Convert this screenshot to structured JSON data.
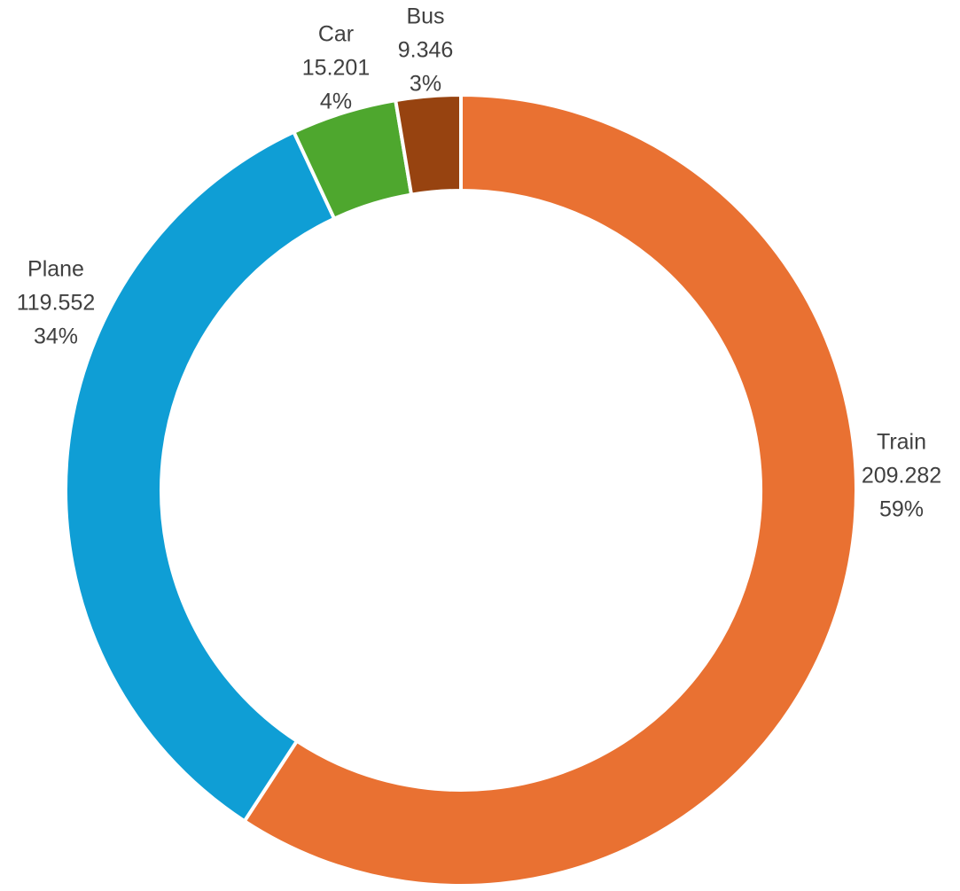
{
  "chart_data": {
    "type": "donut",
    "title": "",
    "series": [
      {
        "values": [
          209.282,
          119.552,
          15.201,
          9.346
        ]
      }
    ],
    "categories": [
      "Train",
      "Plane",
      "Car",
      "Bus"
    ],
    "values": [
      209.282,
      119.552,
      15.201,
      9.346
    ],
    "value_labels": [
      "209.282",
      "119.552",
      "15.201",
      "9.346"
    ],
    "percent_labels": [
      "59%",
      "34%",
      "4%",
      "3%"
    ],
    "colors": [
      "#E97132",
      "#0F9ED5",
      "#4EA72E",
      "#974310"
    ],
    "legend": "none",
    "data_labels": "category, value, percentage"
  }
}
